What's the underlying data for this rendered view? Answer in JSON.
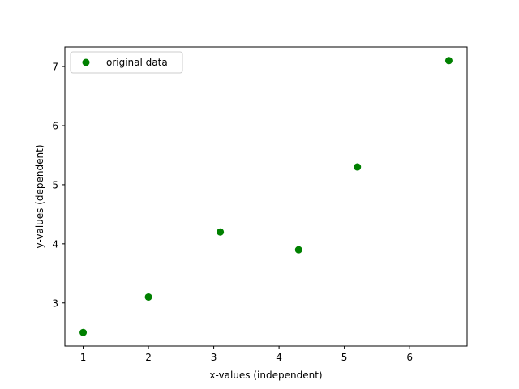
{
  "chart_data": {
    "type": "scatter",
    "title": "",
    "xlabel": "x-values (independent)",
    "ylabel": "y-values (dependent)",
    "xlim": [
      0.72,
      6.88
    ],
    "ylim": [
      2.27,
      7.33
    ],
    "xticks": [
      1,
      2,
      3,
      4,
      5,
      6
    ],
    "yticks": [
      3,
      4,
      5,
      6,
      7
    ],
    "grid": false,
    "legend_position": "top-left",
    "series": [
      {
        "name": "original data",
        "color": "#008000",
        "marker": "circle",
        "points": [
          {
            "x": 1.0,
            "y": 2.5
          },
          {
            "x": 2.0,
            "y": 3.1
          },
          {
            "x": 3.1,
            "y": 4.2
          },
          {
            "x": 4.3,
            "y": 3.9
          },
          {
            "x": 5.2,
            "y": 5.3
          },
          {
            "x": 6.6,
            "y": 7.1
          }
        ]
      }
    ]
  }
}
